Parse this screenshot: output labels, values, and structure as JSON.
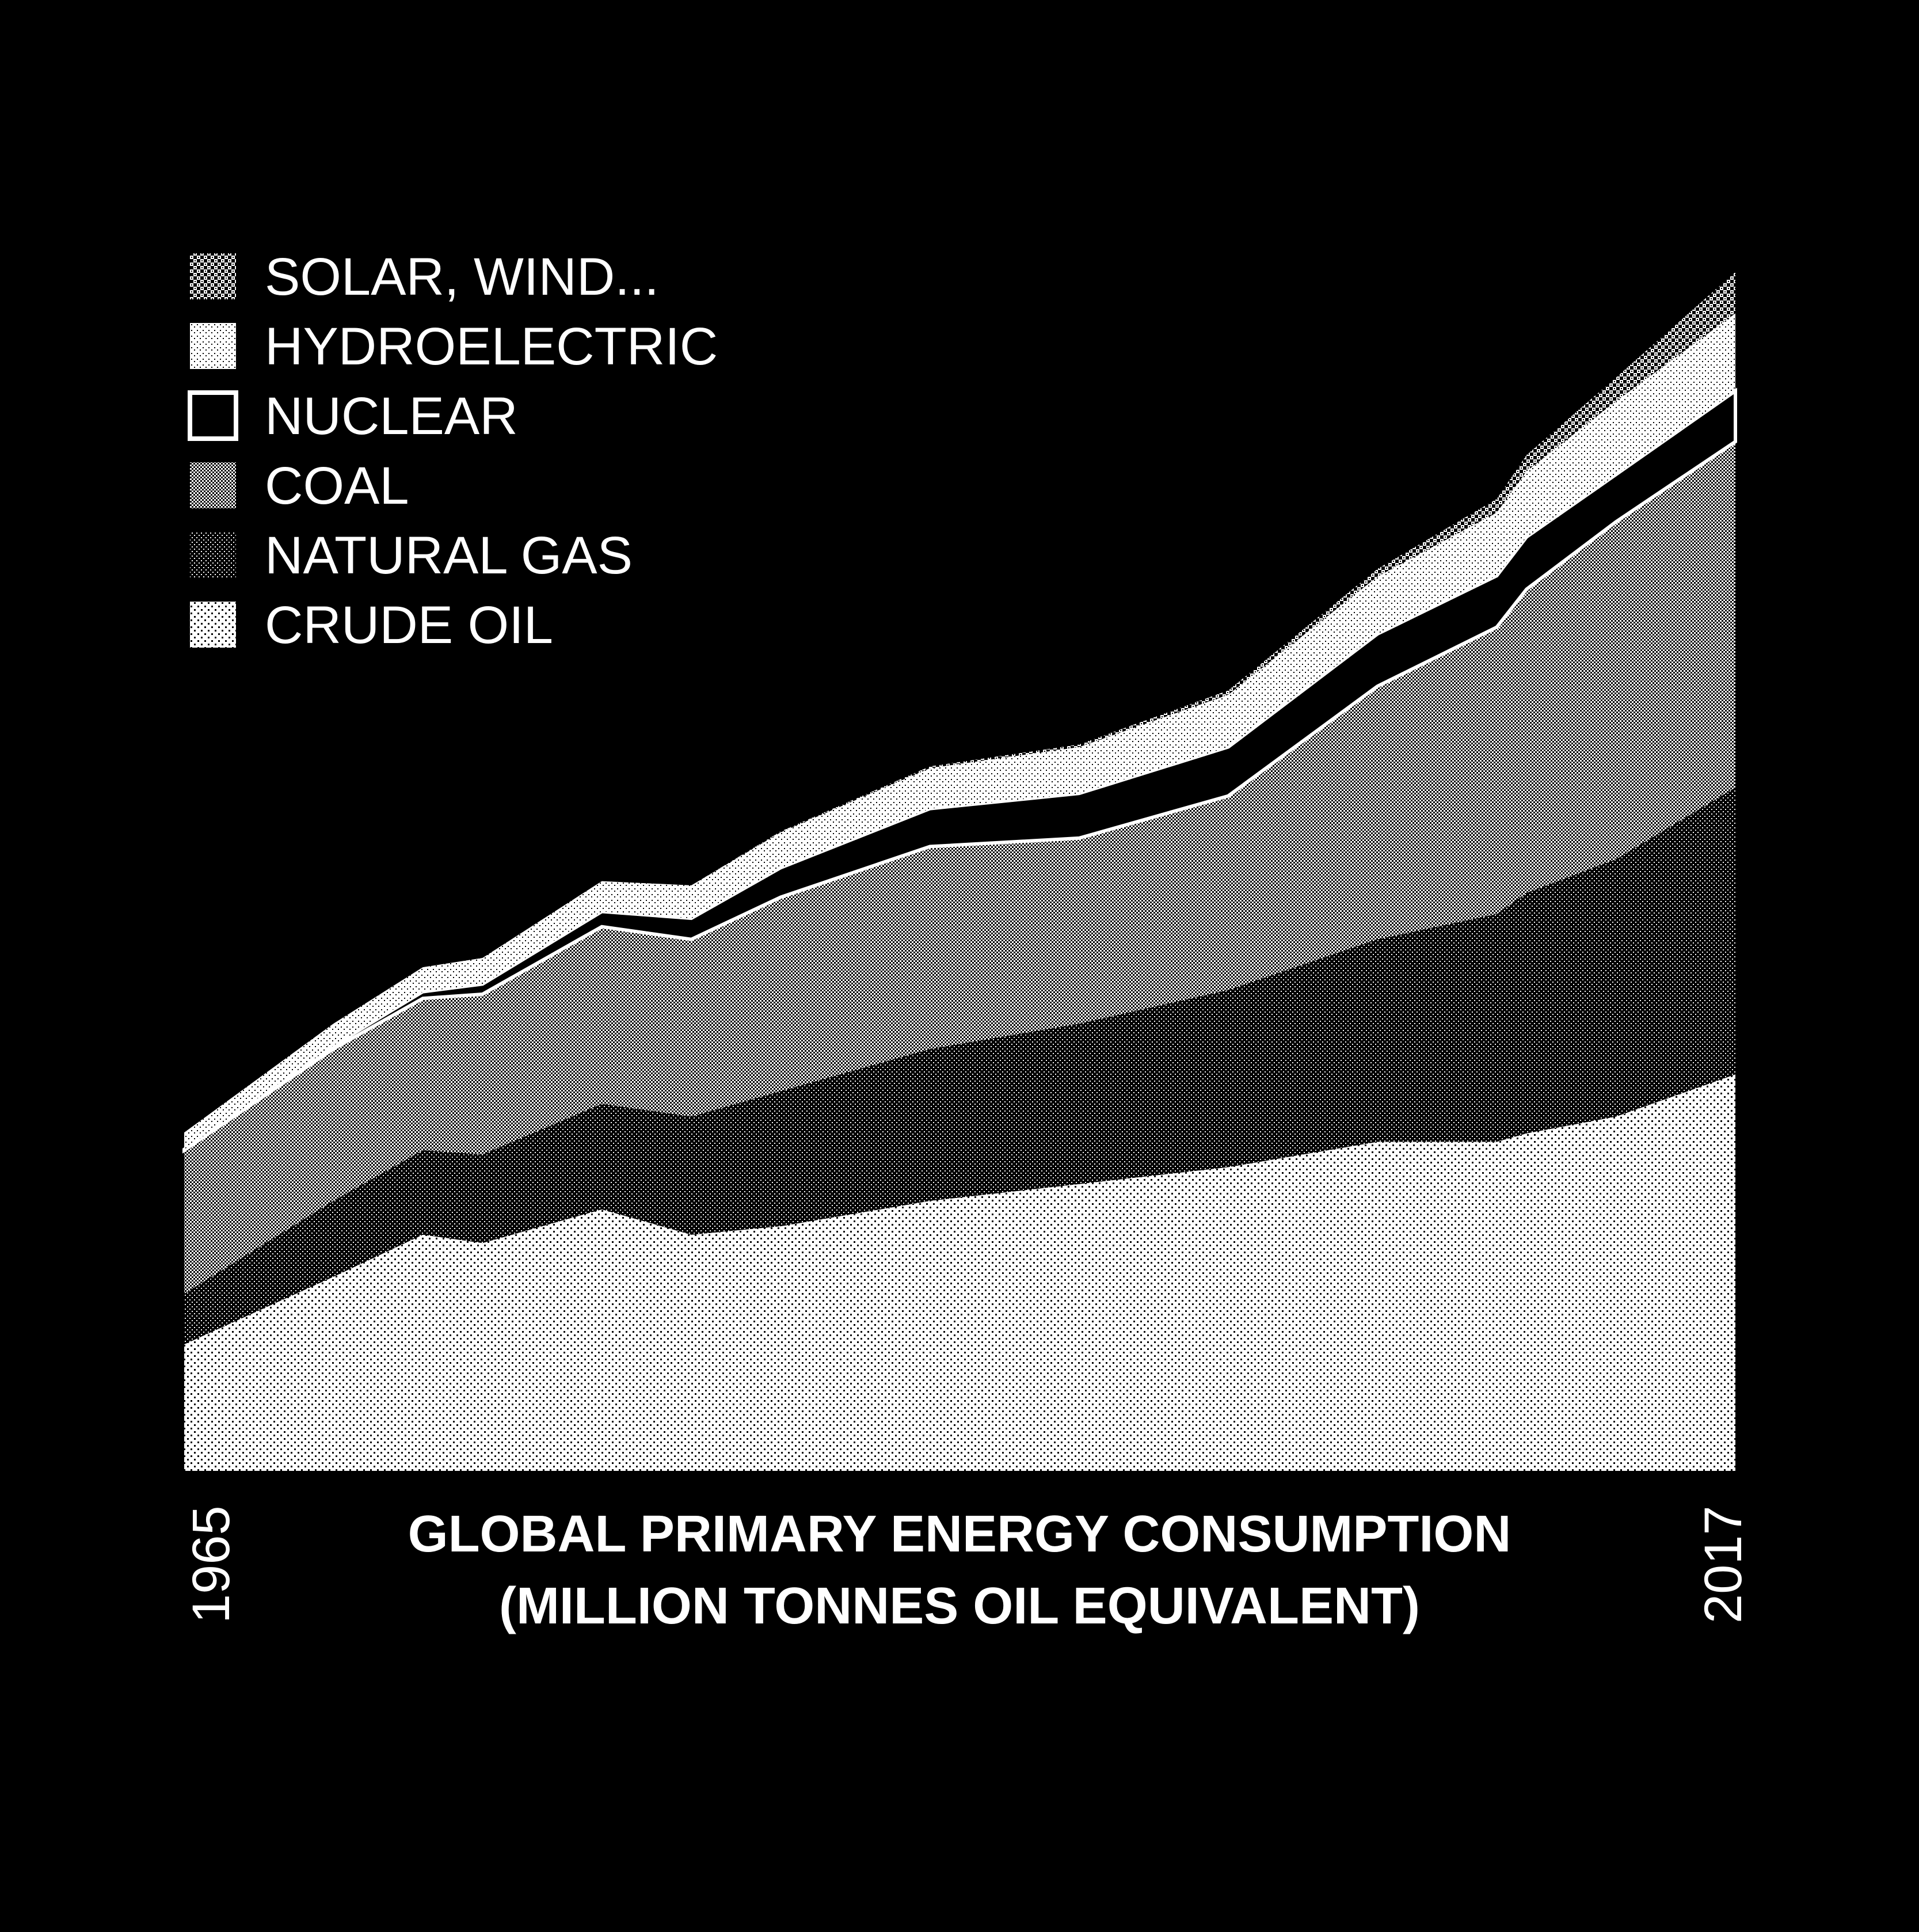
{
  "chart_data": {
    "type": "area",
    "stacked": true,
    "title": "GLOBAL PRIMARY ENERGY CONSUMPTION",
    "subtitle": "(MILLION TONNES OIL EQUIVALENT)",
    "x_start_label": "1965",
    "x_end_label": "2017",
    "x": [
      1965,
      1970,
      1973,
      1975,
      1979,
      1982,
      1985,
      1990,
      1995,
      2000,
      2005,
      2009,
      2010,
      2013,
      2017
    ],
    "ylim": [
      0,
      14500
    ],
    "legend_position": "top-left",
    "series": [
      {
        "name": "CRUDE OIL",
        "pattern": "sparse-dots",
        "values": [
          1500,
          2300,
          2800,
          2700,
          3100,
          2800,
          2900,
          3200,
          3400,
          3600,
          3900,
          3900,
          4000,
          4200,
          4700
        ]
      },
      {
        "name": "NATURAL GAS",
        "pattern": "dense-dark",
        "values": [
          600,
          900,
          1000,
          1050,
          1250,
          1400,
          1600,
          1800,
          1900,
          2100,
          2400,
          2700,
          2850,
          3050,
          3400
        ]
      },
      {
        "name": "COAL",
        "pattern": "fine-gray",
        "values": [
          1700,
          1800,
          1800,
          1900,
          2100,
          2100,
          2300,
          2400,
          2200,
          2300,
          3000,
          3400,
          3600,
          4000,
          4100
        ]
      },
      {
        "name": "NUCLEAR",
        "pattern": "solid-black-outline",
        "values": [
          10,
          40,
          80,
          120,
          180,
          250,
          350,
          450,
          530,
          580,
          620,
          610,
          620,
          560,
          600
        ]
      },
      {
        "name": "HYDROELECTRIC",
        "pattern": "white-speckle",
        "values": [
          200,
          260,
          290,
          310,
          360,
          390,
          420,
          480,
          550,
          620,
          680,
          750,
          780,
          870,
          920
        ]
      },
      {
        "name": "SOLAR, WIND...",
        "pattern": "checker",
        "values": [
          0,
          0,
          0,
          0,
          0,
          0,
          10,
          20,
          30,
          50,
          90,
          160,
          190,
          280,
          490
        ]
      }
    ]
  }
}
